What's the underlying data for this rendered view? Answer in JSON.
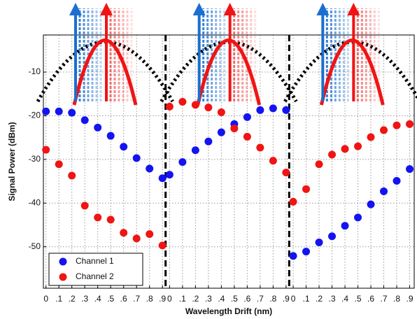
{
  "chart_data": {
    "type": "scatter",
    "xlabel": "Wavelength Drift (nm)",
    "ylabel": "Signal Power (dBm)",
    "ylim": [
      -59.5,
      -1.5
    ],
    "yticks": [
      -50,
      -40,
      -30,
      -20,
      -10
    ],
    "xlim": [
      -0.02,
      0.935
    ],
    "xticks": [
      {
        "value": 0,
        "label": "0"
      },
      {
        "value": 0.1,
        "label": ".1"
      },
      {
        "value": 0.2,
        "label": ".2"
      },
      {
        "value": 0.3,
        "label": ".3"
      },
      {
        "value": 0.4,
        "label": ".4"
      },
      {
        "value": 0.5,
        "label": ".5"
      },
      {
        "value": 0.6,
        "label": ".6"
      },
      {
        "value": 0.7,
        "label": ".7"
      },
      {
        "value": 0.8,
        "label": ".8"
      },
      {
        "value": 0.9,
        "label": ".9"
      }
    ],
    "grid": true,
    "legend": "lower left",
    "series": [
      {
        "name": "Channel 1",
        "color": "#1414f0"
      },
      {
        "name": "Channel 2",
        "color": "#f01414"
      }
    ],
    "x": [
      0,
      0.1,
      0.2,
      0.3,
      0.4,
      0.5,
      0.6,
      0.7,
      0.8,
      0.9
    ],
    "panels": [
      {
        "series": [
          {
            "values": [
              -19.0,
              -19.0,
              -19.3,
              -21.0,
              -22.7,
              -24.6,
              -27.1,
              -29.7,
              -32.1,
              -34.3
            ]
          },
          {
            "values": [
              -27.8,
              -31.1,
              -33.7,
              -40.6,
              -43.3,
              -43.8,
              -46.8,
              -48.1,
              -47.1,
              -49.7
            ]
          }
        ]
      },
      {
        "series": [
          {
            "values": [
              -33.5,
              -30.6,
              -27.9,
              -25.9,
              -23.8,
              -21.9,
              -20.3,
              -18.7,
              -18.3,
              -18.7
            ]
          },
          {
            "values": [
              -17.9,
              -16.8,
              -17.5,
              -18.1,
              -19.2,
              -22.9,
              -24.8,
              -27.3,
              -30.3,
              -33.0
            ]
          }
        ]
      },
      {
        "series": [
          {
            "values": [
              -52.1,
              -51.1,
              -49.0,
              -47.6,
              -45.2,
              -43.3,
              -40.3,
              -37.3,
              -34.9,
              -32.2
            ]
          },
          {
            "values": [
              -39.7,
              -36.8,
              -31.1,
              -28.9,
              -27.6,
              -27.0,
              -24.9,
              -23.3,
              -22.2,
              -21.9
            ]
          }
        ]
      }
    ]
  }
}
